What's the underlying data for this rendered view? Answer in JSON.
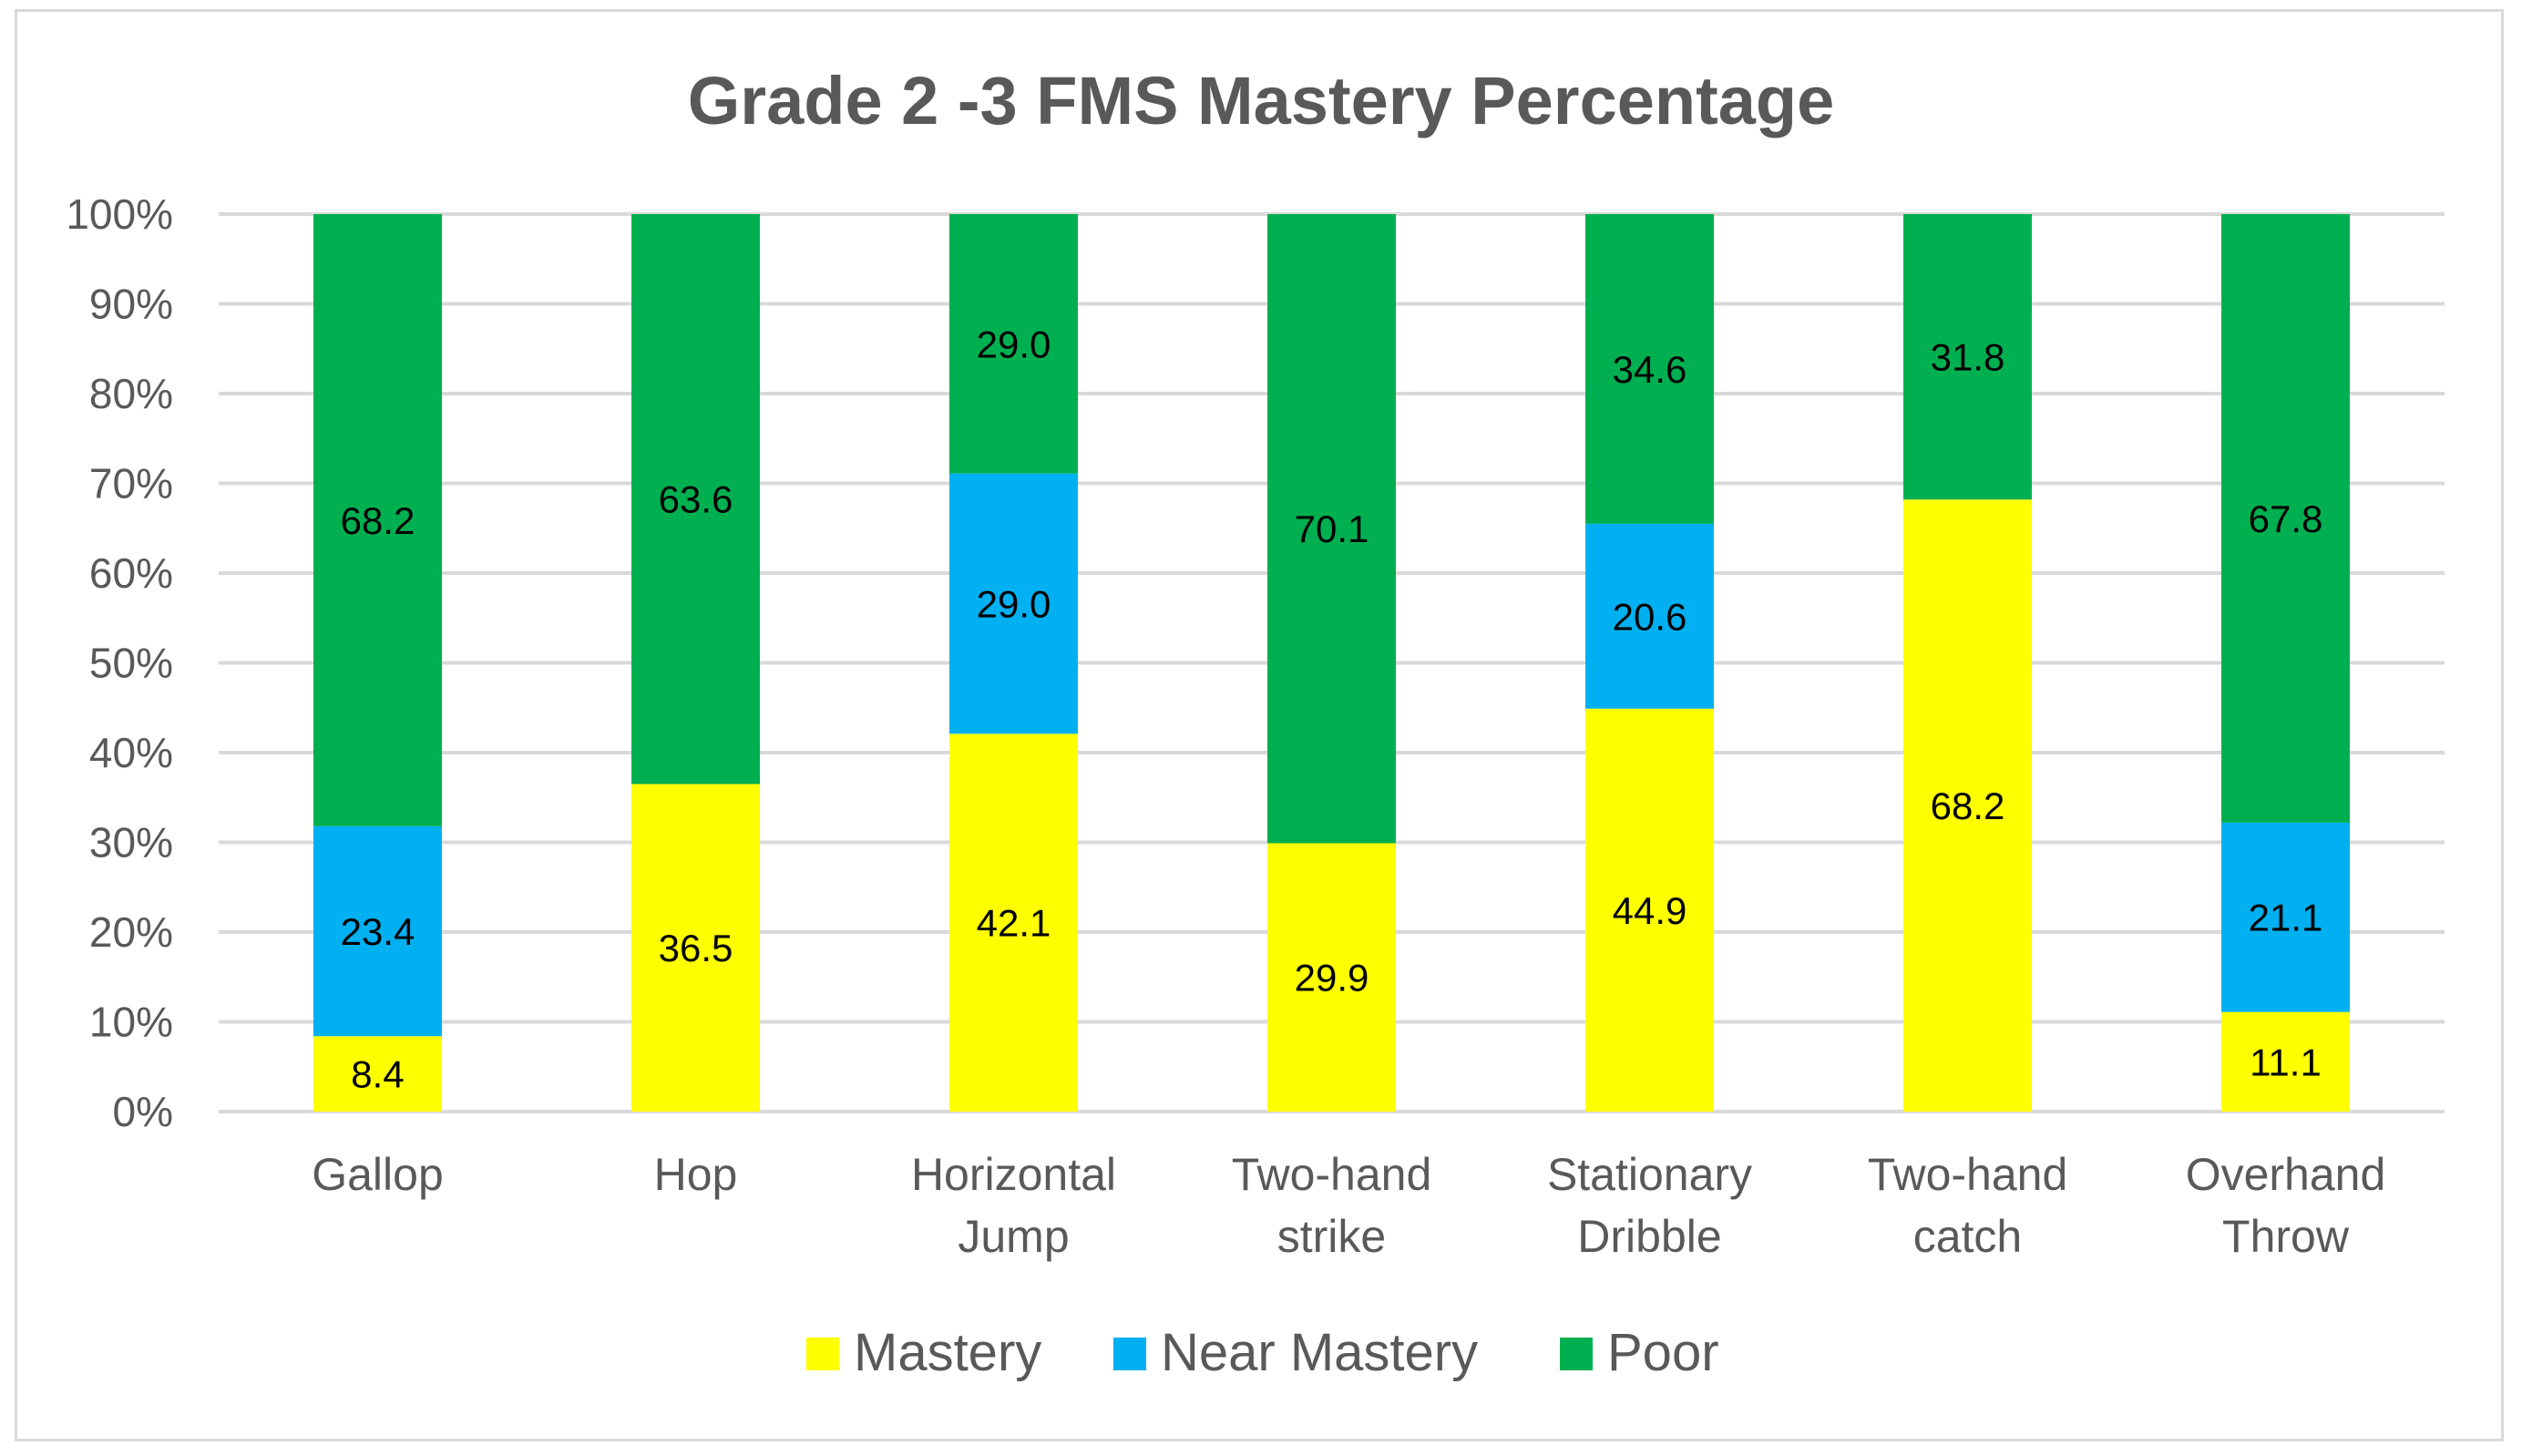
{
  "chart_data": {
    "type": "bar",
    "stacked": "percent",
    "title": "Grade 2 -3 FMS Mastery Percentage",
    "xlabel": "",
    "ylabel": "",
    "ylim": [
      0,
      100
    ],
    "yticks": [
      "0%",
      "10%",
      "20%",
      "30%",
      "40%",
      "50%",
      "60%",
      "70%",
      "80%",
      "90%",
      "100%"
    ],
    "grid": true,
    "legend_position": "bottom",
    "categories": [
      [
        "Gallop"
      ],
      [
        "Hop"
      ],
      [
        "Horizontal",
        "Jump"
      ],
      [
        "Two-hand",
        "strike"
      ],
      [
        "Stationary",
        "Dribble"
      ],
      [
        "Two-hand",
        "catch"
      ],
      [
        "Overhand",
        "Throw"
      ]
    ],
    "series": [
      {
        "name": "Mastery",
        "color": "#ffff00",
        "values": [
          8.4,
          36.5,
          42.1,
          29.9,
          44.9,
          68.2,
          11.1
        ]
      },
      {
        "name": "Near Mastery",
        "color": "#00b0f0",
        "values": [
          23.4,
          0,
          29.0,
          0,
          20.6,
          0,
          21.1
        ]
      },
      {
        "name": "Poor",
        "color": "#00b050",
        "values": [
          68.2,
          63.6,
          29.0,
          70.1,
          34.6,
          31.8,
          67.8
        ]
      }
    ]
  }
}
